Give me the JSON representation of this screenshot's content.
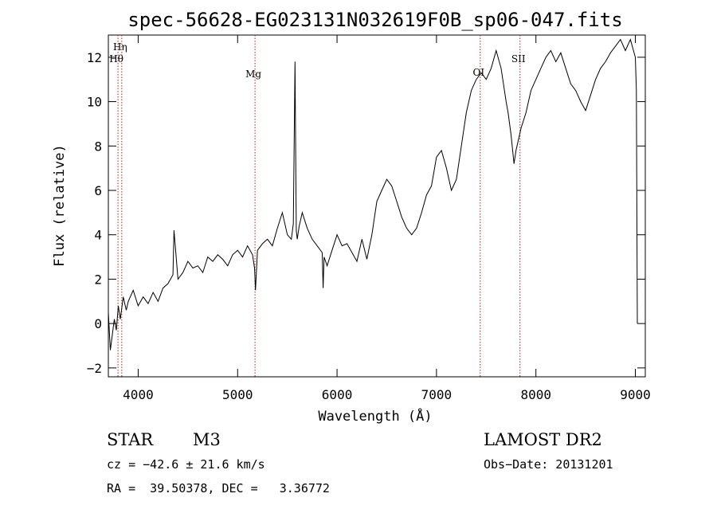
{
  "chart_data": {
    "type": "line",
    "title": "spec-56628-EG023131N032619F0B_sp06-047.fits",
    "xlabel": "Wavelength (Å)",
    "ylabel": "Flux (relative)",
    "xlim": [
      3700,
      9100
    ],
    "ylim": [
      -2.4,
      13.0
    ],
    "xticks": [
      4000,
      5000,
      6000,
      7000,
      8000,
      9000
    ],
    "yticks": [
      -2,
      0,
      2,
      4,
      6,
      8,
      10,
      12
    ],
    "grid": false,
    "lines": [
      {
        "label": "Hη",
        "x": 3835
      },
      {
        "label": "Hθ",
        "x": 3797
      },
      {
        "label": "Mg",
        "x": 5175
      },
      {
        "label": "OI",
        "x": 7440
      },
      {
        "label": "SII",
        "x": 7840
      }
    ],
    "series": [
      {
        "x": [
          3700,
          3720,
          3740,
          3760,
          3780,
          3800,
          3820,
          3850,
          3880,
          3900,
          3950,
          4000,
          4050,
          4100,
          4150,
          4200,
          4250,
          4300,
          4350,
          4360,
          4400,
          4450,
          4500,
          4550,
          4600,
          4650,
          4700,
          4750,
          4800,
          4850,
          4900,
          4950,
          5000,
          5050,
          5100,
          5150,
          5170,
          5180,
          5200,
          5250,
          5300,
          5350,
          5400,
          5450,
          5500,
          5540,
          5560,
          5577,
          5590,
          5600,
          5620,
          5650,
          5700,
          5750,
          5800,
          5850,
          5860,
          5870,
          5900,
          5950,
          6000,
          6050,
          6100,
          6150,
          6200,
          6250,
          6300,
          6350,
          6400,
          6450,
          6500,
          6550,
          6600,
          6650,
          6700,
          6750,
          6800,
          6850,
          6900,
          6950,
          7000,
          7050,
          7100,
          7150,
          7200,
          7250,
          7300,
          7350,
          7400,
          7450,
          7500,
          7550,
          7600,
          7650,
          7700,
          7720,
          7750,
          7780,
          7800,
          7850,
          7900,
          7950,
          8000,
          8050,
          8100,
          8150,
          8200,
          8250,
          8300,
          8350,
          8400,
          8450,
          8500,
          8550,
          8600,
          8650,
          8700,
          8750,
          8800,
          8850,
          8900,
          8950,
          9000,
          9010,
          9020
        ],
        "y": [
          0.5,
          -1.2,
          -0.5,
          0.2,
          -0.3,
          0.8,
          0.2,
          1.2,
          0.6,
          1.0,
          1.5,
          0.8,
          1.2,
          0.9,
          1.4,
          1.0,
          1.6,
          1.8,
          2.2,
          4.2,
          2.0,
          2.3,
          2.8,
          2.5,
          2.6,
          2.3,
          3.0,
          2.8,
          3.1,
          2.9,
          2.6,
          3.1,
          3.3,
          3.0,
          3.5,
          3.1,
          2.5,
          1.5,
          3.3,
          3.6,
          3.8,
          3.5,
          4.3,
          5.0,
          4.0,
          3.8,
          4.5,
          11.8,
          4.2,
          3.8,
          4.4,
          5.0,
          4.3,
          3.8,
          3.5,
          3.2,
          1.6,
          3.0,
          2.6,
          3.3,
          4.0,
          3.5,
          3.6,
          3.2,
          2.8,
          3.8,
          2.9,
          4.0,
          5.5,
          6.0,
          6.5,
          6.2,
          5.5,
          4.8,
          4.3,
          4.0,
          4.3,
          5.0,
          5.8,
          6.2,
          7.5,
          7.8,
          7.0,
          6.0,
          6.5,
          8.0,
          9.5,
          10.5,
          11.0,
          11.3,
          11.0,
          11.5,
          12.3,
          11.5,
          10.0,
          9.5,
          8.5,
          7.2,
          7.8,
          8.8,
          9.5,
          10.5,
          11.0,
          11.5,
          12.0,
          12.3,
          11.8,
          12.2,
          11.5,
          10.8,
          10.5,
          10.0,
          9.6,
          10.3,
          11.0,
          11.5,
          11.8,
          12.2,
          12.5,
          12.8,
          12.3,
          12.8,
          12.0,
          10.5,
          0.0
        ]
      }
    ]
  },
  "info": {
    "object_class": "STAR",
    "subclass": "M3",
    "survey": "LAMOST DR2",
    "cz": "cz = −42.6 ± 21.6 km/s",
    "obs_date": "Obs−Date: 20131201",
    "coords": "RA =  39.50378, DEC =   3.36772"
  }
}
